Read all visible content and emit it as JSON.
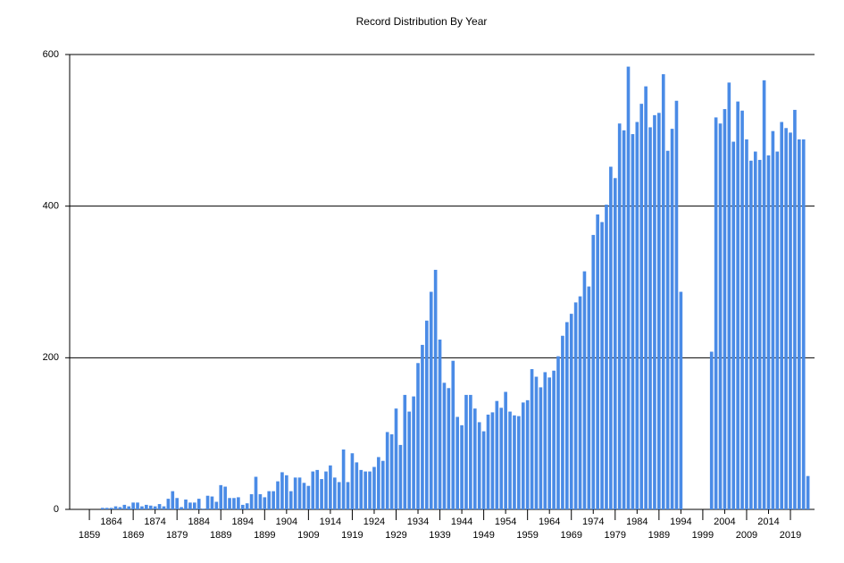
{
  "chart_data": {
    "type": "bar",
    "title": "Record Distribution By Year",
    "x": [
      1862,
      1863,
      1864,
      1865,
      1866,
      1867,
      1868,
      1869,
      1870,
      1871,
      1872,
      1873,
      1874,
      1875,
      1876,
      1877,
      1878,
      1879,
      1880,
      1881,
      1882,
      1883,
      1884,
      1885,
      1886,
      1887,
      1888,
      1889,
      1890,
      1891,
      1892,
      1893,
      1894,
      1895,
      1896,
      1897,
      1898,
      1899,
      1900,
      1901,
      1902,
      1903,
      1904,
      1905,
      1906,
      1907,
      1908,
      1909,
      1910,
      1911,
      1912,
      1913,
      1914,
      1915,
      1916,
      1917,
      1918,
      1919,
      1920,
      1921,
      1922,
      1923,
      1924,
      1925,
      1926,
      1927,
      1928,
      1929,
      1930,
      1931,
      1932,
      1933,
      1934,
      1935,
      1936,
      1937,
      1938,
      1939,
      1940,
      1941,
      1942,
      1943,
      1944,
      1945,
      1946,
      1947,
      1948,
      1949,
      1950,
      1951,
      1952,
      1953,
      1954,
      1955,
      1956,
      1957,
      1958,
      1959,
      1960,
      1961,
      1962,
      1963,
      1964,
      1965,
      1966,
      1967,
      1968,
      1969,
      1970,
      1971,
      1972,
      1973,
      1974,
      1975,
      1976,
      1977,
      1978,
      1979,
      1980,
      1981,
      1982,
      1983,
      1984,
      1985,
      1986,
      1987,
      1988,
      1989,
      1990,
      1991,
      1992,
      1993,
      1994,
      2001,
      2002,
      2003,
      2004,
      2005,
      2006,
      2007,
      2008,
      2009,
      2010,
      2011,
      2012,
      2013,
      2014,
      2015,
      2016,
      2017,
      2018,
      2019,
      2020,
      2021,
      2022,
      2023
    ],
    "values": [
      2,
      2,
      2,
      4,
      3,
      6,
      4,
      9,
      9,
      4,
      6,
      5,
      4,
      7,
      4,
      14,
      24,
      15,
      3,
      13,
      9,
      9,
      14,
      1,
      18,
      17,
      10,
      32,
      30,
      15,
      15,
      16,
      6,
      8,
      20,
      43,
      20,
      16,
      24,
      24,
      37,
      49,
      45,
      24,
      42,
      42,
      35,
      31,
      50,
      52,
      40,
      50,
      58,
      42,
      36,
      79,
      36,
      74,
      62,
      52,
      50,
      50,
      56,
      69,
      64,
      102,
      99,
      133,
      85,
      151,
      129,
      149,
      193,
      217,
      249,
      287,
      316,
      224,
      167,
      160,
      196,
      122,
      111,
      151,
      151,
      133,
      115,
      103,
      125,
      128,
      143,
      134,
      155,
      129,
      124,
      123,
      141,
      144,
      185,
      175,
      161,
      181,
      174,
      183,
      202,
      229,
      247,
      258,
      273,
      281,
      314,
      294,
      362,
      389,
      379,
      402,
      452,
      437,
      509,
      500,
      584,
      495,
      511,
      535,
      558,
      504,
      520,
      523,
      574,
      473,
      502,
      539,
      287,
      208,
      517,
      509,
      528,
      563,
      485,
      538,
      526,
      488,
      460,
      472,
      461,
      566,
      467,
      499,
      472,
      511,
      503,
      497,
      527,
      488,
      488,
      44
    ],
    "color": "#4a8be6",
    "xlim": [
      1854.5,
      2024.5
    ],
    "xticks": [
      1859,
      1864,
      1869,
      1874,
      1879,
      1884,
      1889,
      1894,
      1899,
      1904,
      1909,
      1914,
      1919,
      1924,
      1929,
      1934,
      1939,
      1944,
      1949,
      1954,
      1959,
      1964,
      1969,
      1974,
      1979,
      1984,
      1989,
      1994,
      1999,
      2004,
      2009,
      2014,
      2019
    ],
    "ylim": [
      0,
      600
    ],
    "yticks": [
      0,
      200,
      400,
      600
    ],
    "grid": true
  }
}
